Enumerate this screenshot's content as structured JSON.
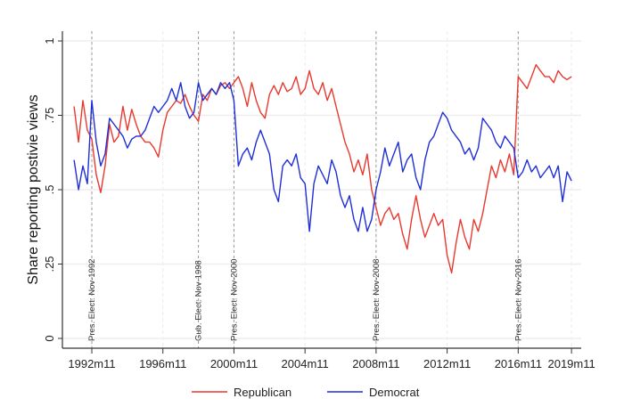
{
  "chart_data": {
    "type": "line",
    "title": "",
    "xlabel": "",
    "ylabel": "Share reporting postivie views",
    "ylim": [
      0,
      1
    ],
    "yticks": [
      0,
      0.25,
      0.5,
      0.75,
      1
    ],
    "ytick_labels": [
      "0",
      ".25",
      ".5",
      ".75",
      "1"
    ],
    "xticks": [
      "1992m11",
      "1996m11",
      "2000m11",
      "2004m11",
      "2008m11",
      "2012m11",
      "2016m11",
      "2019m11"
    ],
    "grid": true,
    "legend_placement": "bottom",
    "annotations": [
      {
        "x": "1992m11",
        "label": "Pres. Elect: Nov-1992"
      },
      {
        "x": "1998m11",
        "label": "Gub. Elect: Nov-1998"
      },
      {
        "x": "2000m11",
        "label": "Pres. Elect: Nov-2000"
      },
      {
        "x": "2008m11",
        "label": "Pres. Elect: Nov-2008"
      },
      {
        "x": "2016m11",
        "label": "Pres. Elect: Nov-2016"
      }
    ],
    "x_start": "1991m11",
    "x_step_months": 3,
    "series": [
      {
        "name": "Republican",
        "color": "#e8392f",
        "values": [
          0.78,
          0.66,
          0.8,
          0.7,
          0.67,
          0.55,
          0.49,
          0.58,
          0.72,
          0.66,
          0.68,
          0.78,
          0.7,
          0.77,
          0.72,
          0.68,
          0.66,
          0.66,
          0.64,
          0.61,
          0.7,
          0.76,
          0.78,
          0.8,
          0.79,
          0.82,
          0.78,
          0.75,
          0.73,
          0.82,
          0.8,
          0.84,
          0.82,
          0.85,
          0.86,
          0.84,
          0.86,
          0.88,
          0.84,
          0.78,
          0.86,
          0.8,
          0.76,
          0.74,
          0.82,
          0.85,
          0.82,
          0.86,
          0.83,
          0.84,
          0.88,
          0.82,
          0.84,
          0.9,
          0.84,
          0.82,
          0.86,
          0.8,
          0.84,
          0.78,
          0.72,
          0.66,
          0.62,
          0.56,
          0.6,
          0.55,
          0.62,
          0.5,
          0.44,
          0.38,
          0.42,
          0.44,
          0.4,
          0.42,
          0.35,
          0.3,
          0.4,
          0.48,
          0.4,
          0.34,
          0.38,
          0.42,
          0.38,
          0.4,
          0.28,
          0.22,
          0.32,
          0.4,
          0.34,
          0.3,
          0.4,
          0.36,
          0.42,
          0.5,
          0.58,
          0.54,
          0.6,
          0.56,
          0.62,
          0.55,
          0.88,
          0.86,
          0.84,
          0.88,
          0.92,
          0.9,
          0.88,
          0.88,
          0.86,
          0.9,
          0.88,
          0.87,
          0.88
        ]
      },
      {
        "name": "Democrat",
        "color": "#1f2fd6",
        "values": [
          0.6,
          0.5,
          0.58,
          0.52,
          0.8,
          0.66,
          0.58,
          0.62,
          0.74,
          0.72,
          0.7,
          0.68,
          0.64,
          0.67,
          0.68,
          0.68,
          0.7,
          0.74,
          0.78,
          0.76,
          0.78,
          0.8,
          0.84,
          0.8,
          0.86,
          0.78,
          0.74,
          0.76,
          0.86,
          0.8,
          0.82,
          0.84,
          0.82,
          0.86,
          0.84,
          0.86,
          0.8,
          0.58,
          0.62,
          0.64,
          0.6,
          0.66,
          0.7,
          0.66,
          0.62,
          0.5,
          0.46,
          0.58,
          0.6,
          0.58,
          0.62,
          0.54,
          0.52,
          0.36,
          0.52,
          0.58,
          0.55,
          0.52,
          0.6,
          0.56,
          0.48,
          0.44,
          0.48,
          0.4,
          0.36,
          0.44,
          0.36,
          0.4,
          0.5,
          0.56,
          0.64,
          0.58,
          0.62,
          0.66,
          0.56,
          0.6,
          0.62,
          0.54,
          0.5,
          0.6,
          0.66,
          0.68,
          0.72,
          0.76,
          0.74,
          0.7,
          0.68,
          0.66,
          0.62,
          0.64,
          0.6,
          0.64,
          0.74,
          0.72,
          0.7,
          0.66,
          0.64,
          0.68,
          0.66,
          0.64,
          0.54,
          0.56,
          0.6,
          0.56,
          0.58,
          0.54,
          0.56,
          0.58,
          0.54,
          0.58,
          0.46,
          0.56,
          0.53
        ]
      }
    ]
  }
}
